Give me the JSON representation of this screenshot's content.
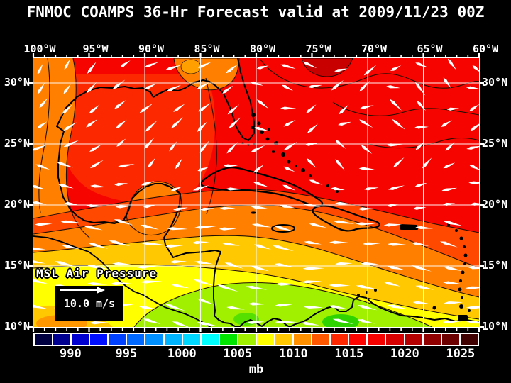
{
  "title": "FNMOC COAMPS 36-Hr Forecast valid at 2009/11/23 00Z",
  "axes": {
    "lon_labels": [
      "100°W",
      "95°W",
      "90°W",
      "85°W",
      "80°W",
      "75°W",
      "70°W",
      "65°W",
      "60°W"
    ],
    "lat_labels": [
      "30°N",
      "25°N",
      "20°N",
      "15°N",
      "10°N"
    ]
  },
  "map": {
    "field_label": "MSL Air Pressure",
    "wind_legend_label": "10.0 m/s"
  },
  "colorbar": {
    "unit": "mb",
    "tick_labels": [
      "990",
      "995",
      "1000",
      "1005",
      "1010",
      "1015",
      "1020",
      "1025"
    ],
    "cells": [
      "#000040",
      "#000090",
      "#0000d0",
      "#0010ff",
      "#0040ff",
      "#0068ff",
      "#0090ff",
      "#00b4ff",
      "#00d8ff",
      "#00ffff",
      "#00e400",
      "#a0f000",
      "#ffff00",
      "#ffc800",
      "#ff9000",
      "#ff5800",
      "#ff2800",
      "#ff0400",
      "#f60000",
      "#d80000",
      "#b40000",
      "#900000",
      "#6c0000",
      "#400000"
    ]
  },
  "colors": {
    "background": "#000000",
    "label_text": "#ffffff",
    "grid_line": "#ffffff",
    "tick_mark": "#ffffff",
    "wind_arrow": "#ffffff",
    "coastline": "#000000",
    "sea_high_red": "#f60400",
    "legend_box_bg": "#000000",
    "legend_text": "#ffffff"
  }
}
